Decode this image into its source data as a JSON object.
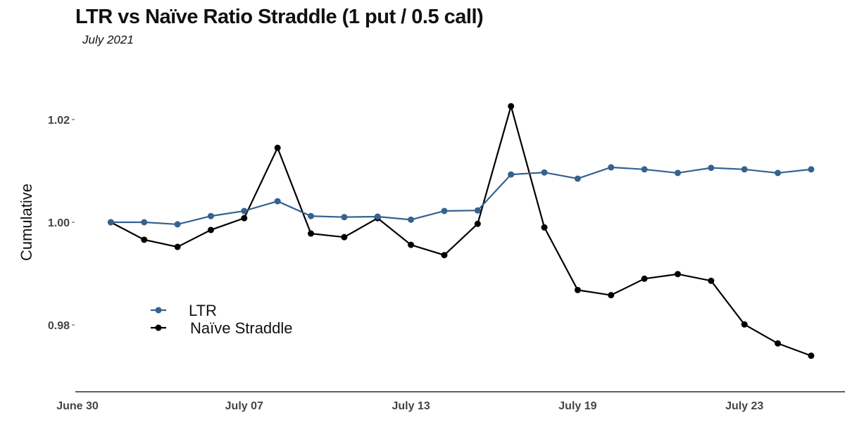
{
  "chart_data": {
    "type": "line",
    "title": "LTR vs Naïve Ratio Straddle (1 put / 0.5 call)",
    "subtitle": "July 2021",
    "xlabel": "",
    "ylabel": "Cumulative",
    "x_tick_labels": [
      "June 30",
      "July 07",
      "July 13",
      "July 19",
      "July 23"
    ],
    "y_ticks": [
      0.98,
      1.0,
      1.02
    ],
    "y_tick_labels": [
      "0.98",
      "1.00",
      "1.02"
    ],
    "ylim": [
      0.9685,
      1.0425
    ],
    "grid": false,
    "legend_placement": "bottom-left",
    "series": [
      {
        "name": "LTR",
        "color": "#35628f",
        "values": [
          1.0,
          1.0,
          0.9996,
          1.0012,
          1.0022,
          1.0041,
          1.0012,
          1.001,
          1.0011,
          1.0005,
          1.0022,
          1.0023,
          1.0093,
          1.0097,
          1.0085,
          1.0107,
          1.0103,
          1.0096,
          1.0106,
          1.0103,
          1.0096,
          1.0103
        ]
      },
      {
        "name": "Naïve Straddle",
        "color": "#000000",
        "values": [
          1.0,
          0.9966,
          0.9952,
          0.9985,
          1.0008,
          1.0145,
          0.9978,
          0.9971,
          1.0008,
          0.9956,
          0.9936,
          0.9997,
          1.0226,
          0.999,
          0.9868,
          0.9858,
          0.989,
          0.9899,
          0.9886,
          0.9801,
          0.9764,
          0.974
        ]
      }
    ]
  }
}
